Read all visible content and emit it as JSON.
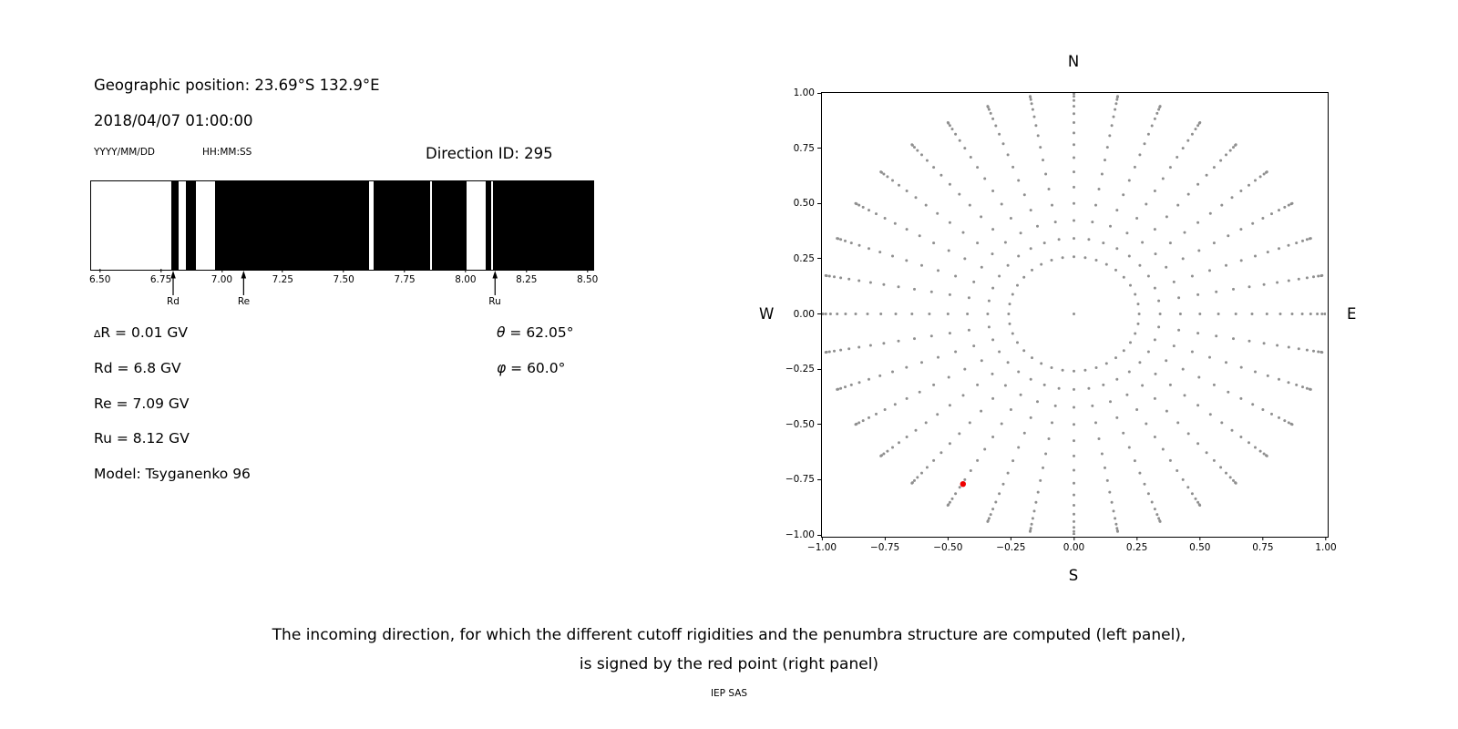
{
  "header": {
    "geo_position": "Geographic position: 23.69°S 132.9°E",
    "datetime": "2018/04/07 01:00:00",
    "date_format_label": "YYYY/MM/DD",
    "time_format_label": "HH:MM:SS",
    "direction_id": "Direction ID: 295"
  },
  "info": {
    "delta_symbol": "∆",
    "delta_text": "R = 0.01 GV",
    "rd": "Rd = 6.8 GV",
    "re": "Re = 7.09 GV",
    "ru": "Ru = 8.12 GV",
    "model": "Model: Tsyganenko 96",
    "theta_symbol": "θ",
    "theta_text": " = 62.05°",
    "phi_symbol": "φ",
    "phi_text": " = 60.0°"
  },
  "caption": {
    "line1": "The incoming direction, for which the different cutoff rigidities and the penumbra structure are computed (left panel),",
    "line2": "is signed by the red point (right panel)",
    "credit": "IEP SAS"
  },
  "chart_data": [
    {
      "type": "bar",
      "name": "penumbra-structure",
      "description": "Cutoff rigidity penumbra: black bands = allowed rigidities, white = forbidden",
      "xlim": [
        6.46,
        8.52
      ],
      "xticks": [
        6.5,
        6.75,
        7.0,
        7.25,
        7.5,
        7.75,
        8.0,
        8.25,
        8.5
      ],
      "xtick_labels": [
        "6.50",
        "6.75",
        "7.00",
        "7.25",
        "7.50",
        "7.75",
        "8.00",
        "8.25",
        "8.50"
      ],
      "black_bands": [
        [
          6.79,
          6.82
        ],
        [
          6.85,
          6.89
        ],
        [
          6.97,
          7.6
        ],
        [
          7.62,
          7.85
        ],
        [
          7.86,
          8.0
        ],
        [
          8.08,
          8.1
        ],
        [
          8.11,
          8.52
        ]
      ],
      "markers": [
        {
          "label": "Rd",
          "value": 6.8
        },
        {
          "label": "Re",
          "value": 7.09
        },
        {
          "label": "Ru",
          "value": 8.12
        }
      ]
    },
    {
      "type": "scatter",
      "name": "incoming-direction-grid",
      "description": "Grid of incoming directions (gray dots, radial spokes, r = sin(zenith)); selected direction shown as red point",
      "xlim": [
        -1.0,
        1.0
      ],
      "ylim": [
        -1.0,
        1.0
      ],
      "xticks": [
        -1.0,
        -0.75,
        -0.5,
        -0.25,
        0.0,
        0.25,
        0.5,
        0.75,
        1.0
      ],
      "xtick_labels": [
        "−1.00",
        "−0.75",
        "−0.50",
        "−0.25",
        "0.00",
        "0.25",
        "0.50",
        "0.75",
        "1.00"
      ],
      "yticks": [
        1.0,
        0.75,
        0.5,
        0.25,
        0.0,
        -0.25,
        -0.5,
        -0.75,
        -1.0
      ],
      "ytick_labels": [
        "1.00",
        "0.75",
        "0.50",
        "0.25",
        "0.00",
        "−0.25",
        "−0.50",
        "−0.75",
        "−1.00"
      ],
      "compass": {
        "top": "N",
        "bottom": "S",
        "left": "W",
        "right": "E"
      },
      "grid_dots": {
        "azimuth_count": 36,
        "zenith_start_deg": 15,
        "zenith_step_deg": 5,
        "zenith_end_deg": 90,
        "projection": "sin(zenith)"
      },
      "center_dot": [
        0.0,
        0.0
      ],
      "red_point": {
        "x": -0.44,
        "y": -0.77
      },
      "dot_color": "#8f8f8f",
      "red_color": "#ee0000",
      "grid": "off",
      "legend": "none"
    }
  ]
}
